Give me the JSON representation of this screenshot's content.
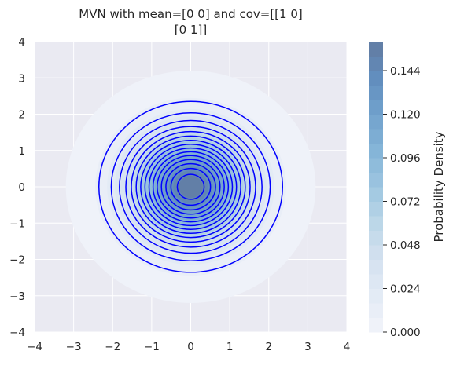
{
  "chart_data": {
    "type": "contour",
    "title": "MVN with mean=[0 0] and cov=[[1 0]\n [0 1]]",
    "title_lines": [
      "MVN with mean=[0 0] and cov=[[1 0]",
      "[0 1]]"
    ],
    "mean": [
      0,
      0
    ],
    "cov": [
      [
        1,
        0
      ],
      [
        0,
        1
      ]
    ],
    "xlim": [
      -4,
      4
    ],
    "ylim": [
      -4,
      4
    ],
    "x_ticks": [
      "−4",
      "−3",
      "−2",
      "−1",
      "0",
      "1",
      "2",
      "3",
      "4"
    ],
    "y_ticks": [
      "−4",
      "−3",
      "−2",
      "−1",
      "0",
      "1",
      "2",
      "3",
      "4"
    ],
    "grid": true,
    "contour_line_color": "#0000ff",
    "contour_levels": [
      0.01,
      0.02,
      0.03,
      0.04,
      0.05,
      0.06,
      0.07,
      0.08,
      0.09,
      0.1,
      0.11,
      0.12,
      0.13,
      0.14,
      0.15
    ],
    "filled_levels": [
      0.0,
      0.008,
      0.016,
      0.024,
      0.032,
      0.04,
      0.048,
      0.056,
      0.064,
      0.072,
      0.08,
      0.088,
      0.096,
      0.104,
      0.112,
      0.12,
      0.128,
      0.136,
      0.144,
      0.152,
      0.16
    ],
    "colormap": "Blues",
    "colorbar": {
      "label": "Probability Density",
      "range": [
        0.0,
        0.16
      ],
      "ticks": [
        0.0,
        0.024,
        0.048,
        0.072,
        0.096,
        0.12,
        0.144
      ],
      "tick_labels": [
        "0.000",
        "0.024",
        "0.048",
        "0.072",
        "0.096",
        "0.120",
        "0.144"
      ]
    },
    "background_color": "#eaeaf2",
    "grid_color": "#ffffff"
  }
}
